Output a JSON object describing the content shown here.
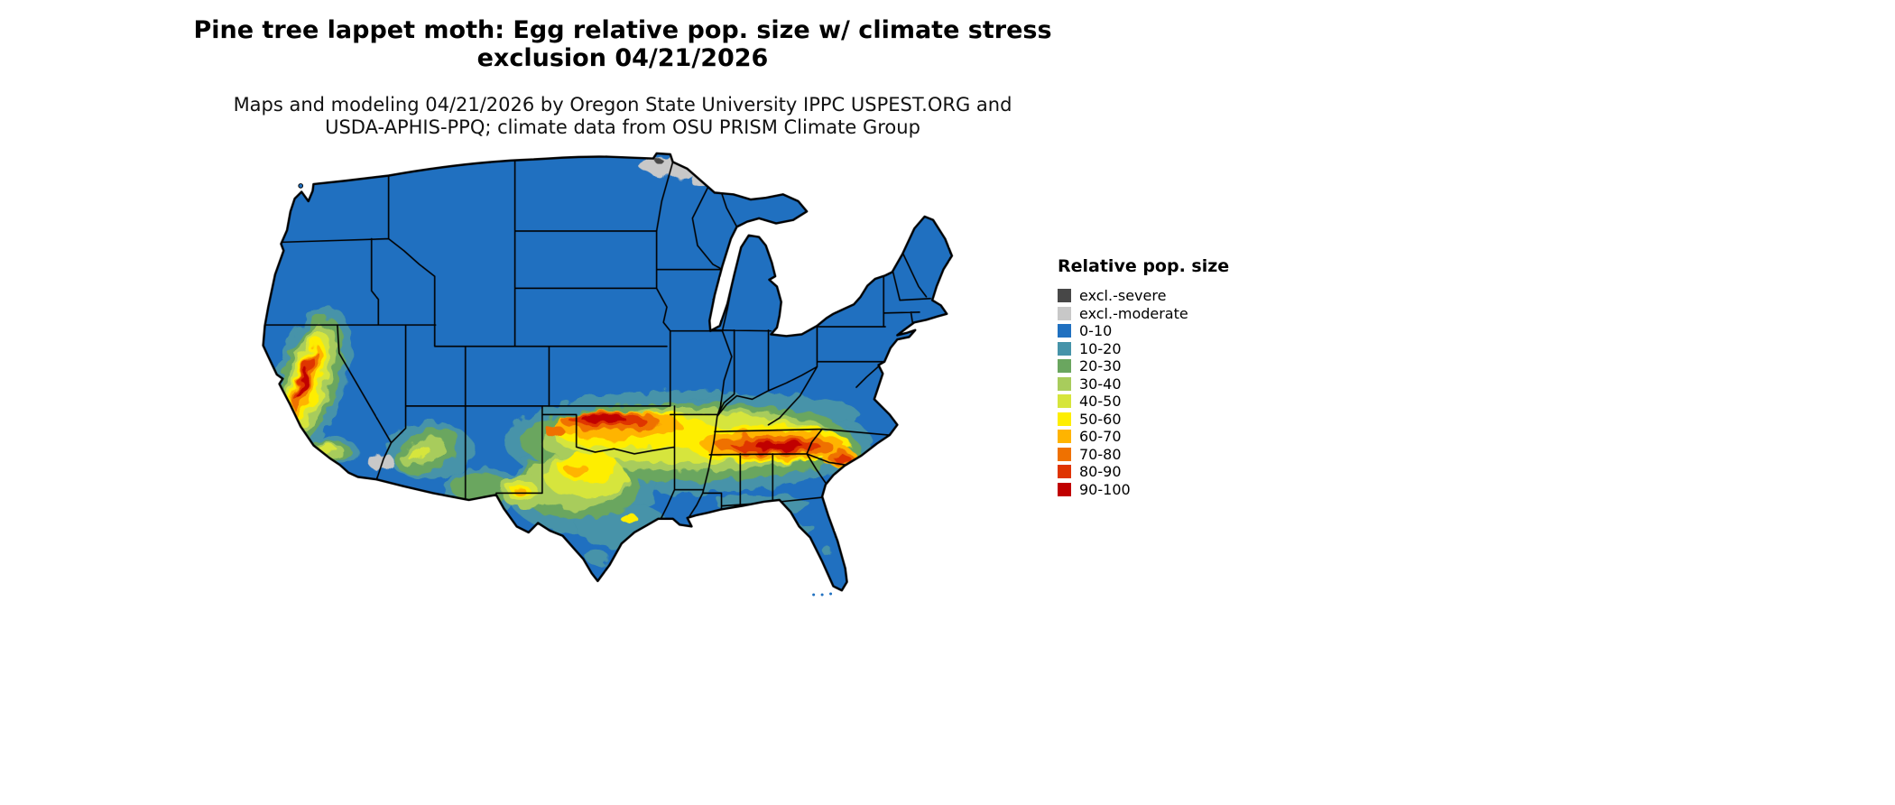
{
  "header": {
    "title_line1": "Pine tree lappet moth: Egg relative pop. size w/ climate stress",
    "title_line2": "exclusion 04/21/2026",
    "subtitle_line1": "Maps and modeling 04/21/2026 by Oregon State University IPPC USPEST.ORG and",
    "subtitle_line2": "USDA-APHIS-PPQ; climate data from OSU PRISM Climate Group"
  },
  "legend": {
    "title": "Relative pop. size",
    "items": [
      {
        "label": "excl.-severe",
        "color": "#474747"
      },
      {
        "label": "excl.-moderate",
        "color": "#c8c8c8"
      },
      {
        "label": "0-10",
        "color": "#2070c0"
      },
      {
        "label": "10-20",
        "color": "#4693a9"
      },
      {
        "label": "20-30",
        "color": "#6aa65f"
      },
      {
        "label": "30-40",
        "color": "#a8cc5c"
      },
      {
        "label": "40-50",
        "color": "#d6e53c"
      },
      {
        "label": "50-60",
        "color": "#feee00"
      },
      {
        "label": "60-70",
        "color": "#ffb400"
      },
      {
        "label": "70-80",
        "color": "#ef7100"
      },
      {
        "label": "80-90",
        "color": "#df3400"
      },
      {
        "label": "90-100",
        "color": "#c00000"
      }
    ]
  },
  "map": {
    "region": "Continental United States",
    "water_color": "#ffffff",
    "border_color": "#000000"
  }
}
